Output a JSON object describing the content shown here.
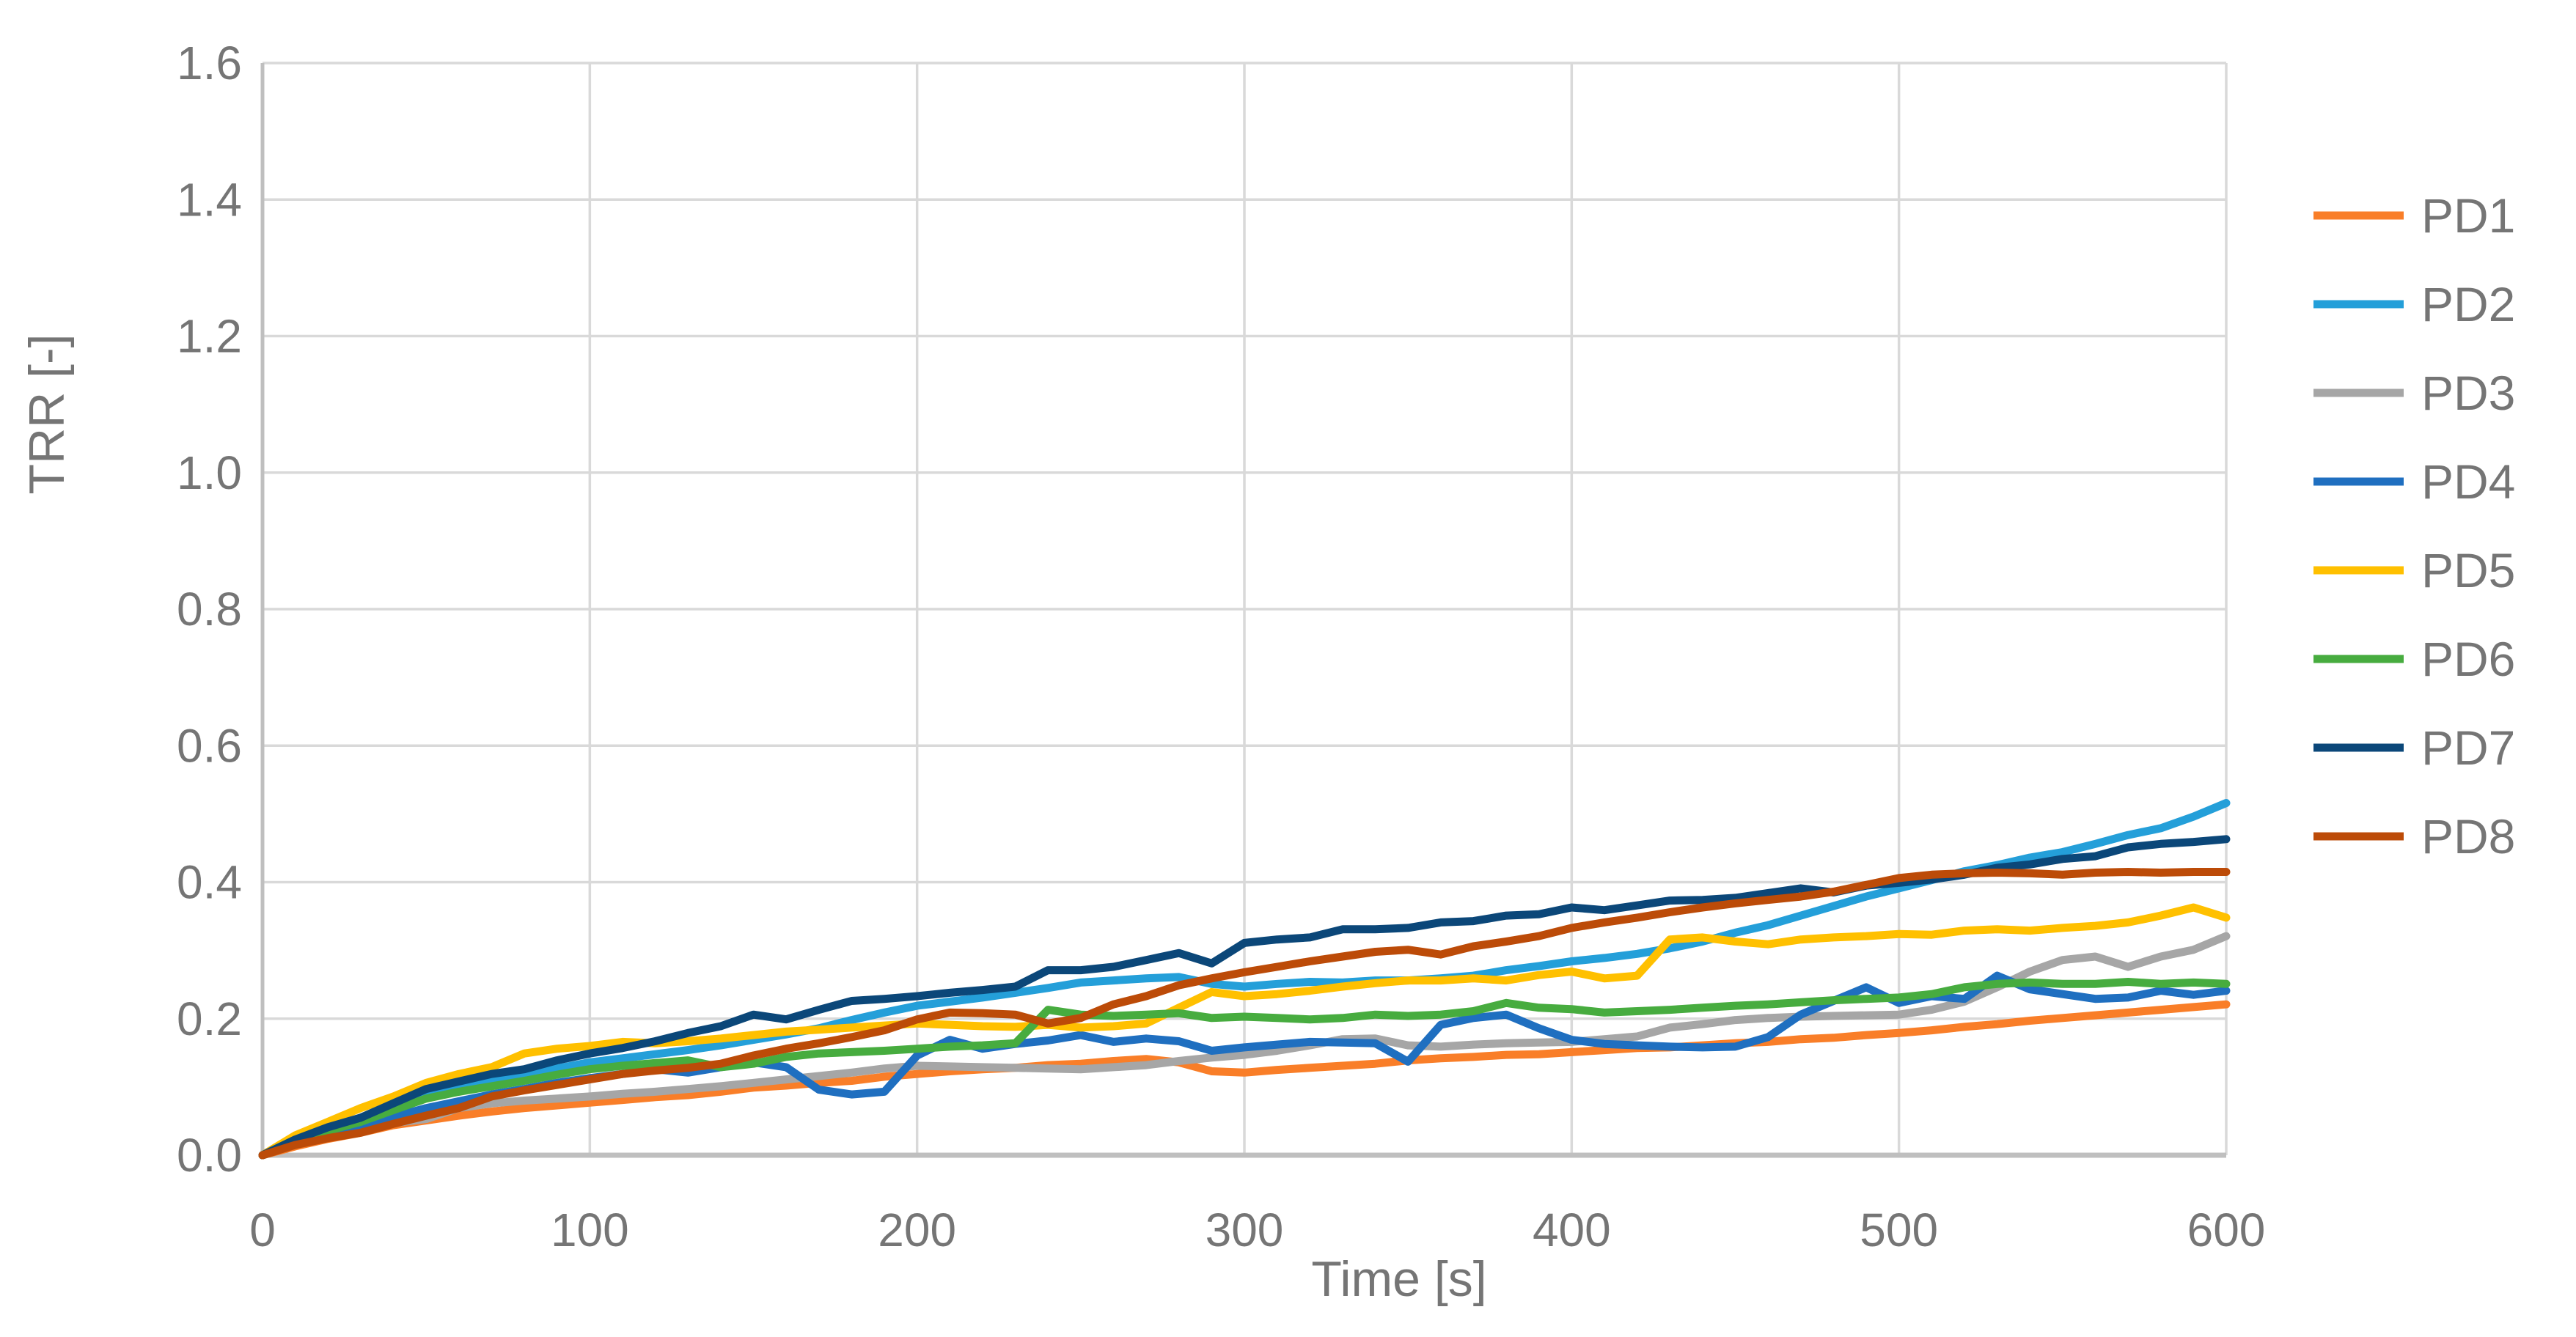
{
  "chart_data": {
    "type": "line",
    "title": "",
    "xlabel": "Time [s]",
    "ylabel": "TRR [-]",
    "xlim": [
      0,
      600
    ],
    "ylim": [
      0,
      1.6
    ],
    "x_step": 10,
    "grid": true,
    "legend_position": "right",
    "xticks": [
      "0",
      "100",
      "200",
      "300",
      "400",
      "500",
      "600"
    ],
    "yticks": [
      "0.0",
      "0.2",
      "0.4",
      "0.6",
      "0.8",
      "1.0",
      "1.2",
      "1.4",
      "1.6"
    ],
    "colors": {
      "gridline": "#D9D9D9",
      "axis_line": "#BFBFBF",
      "label_text": "#757575"
    },
    "series": [
      {
        "name": "PD1",
        "color": "#F97E28",
        "values": [
          0,
          0.013,
          0.024,
          0.033,
          0.044,
          0.051,
          0.058,
          0.064,
          0.069,
          0.073,
          0.077,
          0.081,
          0.085,
          0.088,
          0.093,
          0.099,
          0.102,
          0.106,
          0.109,
          0.115,
          0.119,
          0.123,
          0.126,
          0.128,
          0.132,
          0.134,
          0.138,
          0.141,
          0.136,
          0.123,
          0.121,
          0.125,
          0.128,
          0.131,
          0.134,
          0.139,
          0.142,
          0.144,
          0.147,
          0.148,
          0.151,
          0.154,
          0.157,
          0.158,
          0.161,
          0.164,
          0.166,
          0.17,
          0.172,
          0.176,
          0.179,
          0.183,
          0.188,
          0.192,
          0.197,
          0.201,
          0.205,
          0.209,
          0.213,
          0.217,
          0.221
        ]
      },
      {
        "name": "PD2",
        "color": "#249FD9",
        "values": [
          0,
          0.021,
          0.038,
          0.053,
          0.069,
          0.086,
          0.098,
          0.108,
          0.118,
          0.127,
          0.136,
          0.142,
          0.148,
          0.154,
          0.161,
          0.169,
          0.177,
          0.186,
          0.198,
          0.209,
          0.219,
          0.225,
          0.231,
          0.238,
          0.245,
          0.253,
          0.256,
          0.259,
          0.261,
          0.251,
          0.247,
          0.251,
          0.254,
          0.253,
          0.256,
          0.256,
          0.259,
          0.263,
          0.271,
          0.277,
          0.284,
          0.289,
          0.295,
          0.303,
          0.313,
          0.326,
          0.337,
          0.351,
          0.365,
          0.379,
          0.391,
          0.403,
          0.416,
          0.425,
          0.436,
          0.444,
          0.456,
          0.469,
          0.479,
          0.496,
          0.516
        ]
      },
      {
        "name": "PD3",
        "color": "#A6A6A6",
        "values": [
          0,
          0.016,
          0.028,
          0.038,
          0.047,
          0.053,
          0.069,
          0.076,
          0.08,
          0.083,
          0.086,
          0.09,
          0.093,
          0.097,
          0.101,
          0.106,
          0.111,
          0.116,
          0.121,
          0.127,
          0.131,
          0.13,
          0.129,
          0.128,
          0.127,
          0.126,
          0.129,
          0.132,
          0.138,
          0.143,
          0.147,
          0.153,
          0.161,
          0.17,
          0.171,
          0.161,
          0.159,
          0.162,
          0.164,
          0.165,
          0.166,
          0.17,
          0.174,
          0.187,
          0.192,
          0.198,
          0.201,
          0.203,
          0.204,
          0.205,
          0.206,
          0.213,
          0.225,
          0.246,
          0.269,
          0.286,
          0.291,
          0.276,
          0.291,
          0.301,
          0.321
        ]
      },
      {
        "name": "PD4",
        "color": "#1F6FC0",
        "values": [
          0,
          0.016,
          0.029,
          0.043,
          0.056,
          0.069,
          0.079,
          0.089,
          0.097,
          0.106,
          0.113,
          0.119,
          0.126,
          0.121,
          0.129,
          0.136,
          0.129,
          0.096,
          0.089,
          0.093,
          0.146,
          0.169,
          0.156,
          0.163,
          0.168,
          0.176,
          0.166,
          0.171,
          0.167,
          0.153,
          0.158,
          0.162,
          0.166,
          0.165,
          0.164,
          0.137,
          0.191,
          0.201,
          0.206,
          0.186,
          0.169,
          0.163,
          0.161,
          0.159,
          0.158,
          0.159,
          0.173,
          0.206,
          0.226,
          0.246,
          0.223,
          0.233,
          0.229,
          0.263,
          0.243,
          0.236,
          0.229,
          0.231,
          0.241,
          0.235,
          0.241
        ]
      },
      {
        "name": "PD5",
        "color": "#FFC000",
        "values": [
          0,
          0.029,
          0.049,
          0.069,
          0.086,
          0.106,
          0.119,
          0.129,
          0.149,
          0.156,
          0.16,
          0.166,
          0.164,
          0.167,
          0.171,
          0.176,
          0.181,
          0.184,
          0.187,
          0.19,
          0.193,
          0.191,
          0.189,
          0.188,
          0.191,
          0.187,
          0.189,
          0.193,
          0.216,
          0.239,
          0.233,
          0.236,
          0.241,
          0.247,
          0.252,
          0.256,
          0.256,
          0.259,
          0.256,
          0.264,
          0.269,
          0.259,
          0.263,
          0.316,
          0.319,
          0.313,
          0.309,
          0.316,
          0.319,
          0.321,
          0.324,
          0.323,
          0.329,
          0.331,
          0.329,
          0.333,
          0.336,
          0.341,
          0.351,
          0.363,
          0.348
        ]
      },
      {
        "name": "PD6",
        "color": "#47AC3F",
        "values": [
          0,
          0.019,
          0.036,
          0.049,
          0.066,
          0.083,
          0.093,
          0.101,
          0.109,
          0.118,
          0.126,
          0.131,
          0.135,
          0.139,
          0.129,
          0.134,
          0.144,
          0.149,
          0.151,
          0.153,
          0.156,
          0.159,
          0.161,
          0.164,
          0.213,
          0.206,
          0.204,
          0.206,
          0.208,
          0.201,
          0.203,
          0.201,
          0.199,
          0.201,
          0.206,
          0.204,
          0.206,
          0.211,
          0.223,
          0.216,
          0.214,
          0.209,
          0.211,
          0.213,
          0.216,
          0.219,
          0.221,
          0.224,
          0.227,
          0.229,
          0.231,
          0.236,
          0.246,
          0.251,
          0.253,
          0.251,
          0.251,
          0.254,
          0.251,
          0.253,
          0.251
        ]
      },
      {
        "name": "PD7",
        "color": "#0B4779",
        "values": [
          0,
          0.023,
          0.041,
          0.055,
          0.076,
          0.097,
          0.108,
          0.119,
          0.126,
          0.139,
          0.149,
          0.157,
          0.167,
          0.179,
          0.189,
          0.206,
          0.199,
          0.213,
          0.226,
          0.229,
          0.233,
          0.238,
          0.242,
          0.247,
          0.271,
          0.271,
          0.276,
          0.286,
          0.296,
          0.281,
          0.311,
          0.316,
          0.319,
          0.331,
          0.331,
          0.333,
          0.341,
          0.343,
          0.351,
          0.353,
          0.363,
          0.359,
          0.366,
          0.373,
          0.374,
          0.377,
          0.384,
          0.391,
          0.385,
          0.395,
          0.399,
          0.404,
          0.411,
          0.421,
          0.426,
          0.434,
          0.438,
          0.451,
          0.456,
          0.459,
          0.463
        ]
      },
      {
        "name": "PD8",
        "color": "#BC4B08",
        "values": [
          0,
          0.015,
          0.025,
          0.033,
          0.046,
          0.058,
          0.069,
          0.086,
          0.095,
          0.103,
          0.111,
          0.119,
          0.124,
          0.128,
          0.134,
          0.146,
          0.156,
          0.164,
          0.173,
          0.183,
          0.199,
          0.209,
          0.208,
          0.206,
          0.193,
          0.201,
          0.221,
          0.233,
          0.249,
          0.259,
          0.268,
          0.276,
          0.284,
          0.291,
          0.298,
          0.301,
          0.294,
          0.306,
          0.313,
          0.321,
          0.333,
          0.341,
          0.348,
          0.356,
          0.363,
          0.369,
          0.374,
          0.379,
          0.386,
          0.396,
          0.406,
          0.411,
          0.413,
          0.414,
          0.413,
          0.411,
          0.414,
          0.415,
          0.414,
          0.415,
          0.415
        ]
      }
    ]
  }
}
